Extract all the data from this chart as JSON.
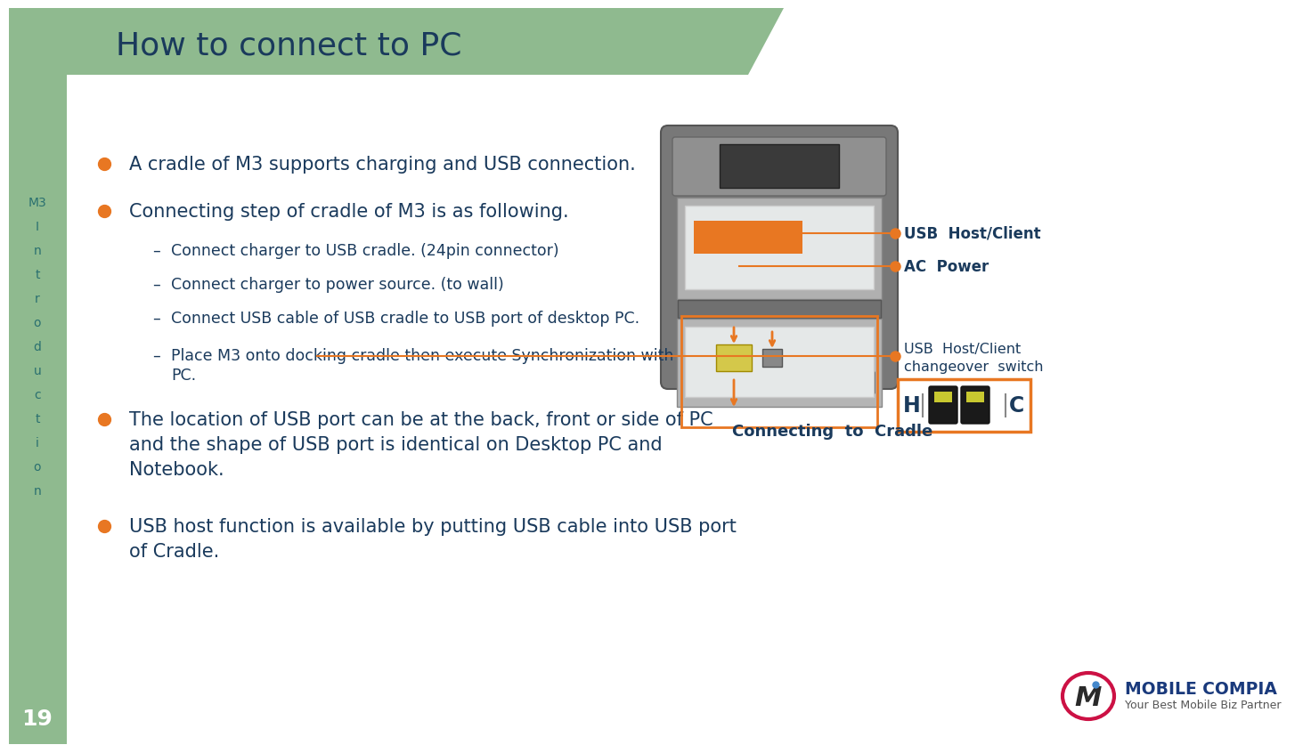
{
  "title": "How to connect to PC",
  "title_color": "#1a3a5c",
  "title_bg_color": "#8fba8f",
  "sidebar_color": "#8fba8f",
  "sidebar_text": [
    "M3",
    "I",
    "n",
    "t",
    "r",
    "o",
    "d",
    "u",
    "c",
    "t",
    "i",
    "o",
    "n"
  ],
  "sidebar_text_color": "#2a7070",
  "page_number": "19",
  "page_number_color": "#ffffff",
  "background_color": "#ffffff",
  "bullet_color": "#e87722",
  "main_text_color": "#1a3a5c",
  "sub_text_color": "#1a3a5c",
  "annotation_color": "#e87722",
  "annotation_label_color": "#1a3a5c",
  "cradle_caption": "Connecting  to  Cradle",
  "usb_host_label": "USB  Host/Client",
  "ac_power_label": "AC  Power",
  "usb_switch_label1": "USB  Host/Client",
  "usb_switch_label2": "changeover  switch",
  "switch_h": "H",
  "switch_c": "C",
  "bullet1": "A cradle of M3 supports charging and USB connection.",
  "bullet2": "Connecting step of cradle of M3 is as following.",
  "sub1": "Connect charger to USB cradle. (24pin connector)",
  "sub2": "Connect charger to power source. (to wall)",
  "sub3": "Connect USB cable of USB cradle to USB port of desktop PC.",
  "sub4a": "Place M3 onto docking cradle then execute Synchronization with Desktop",
  "sub4b": "PC.",
  "bullet3a": "The location of USB port can be at the back, front or side of PC",
  "bullet3b": "and the shape of USB port is identical on Desktop PC and",
  "bullet3c": "Notebook.",
  "bullet4a": "USB host function is available by putting USB cable into USB port",
  "bullet4b": "of Cradle."
}
